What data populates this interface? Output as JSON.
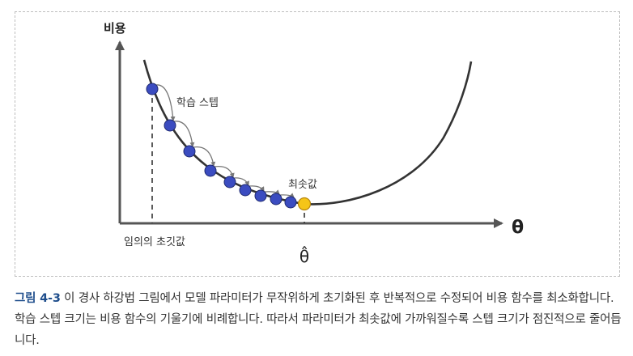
{
  "diagram": {
    "y_axis_label": "비용",
    "x_axis_label": "θ",
    "step_label": "학습 스텝",
    "minimum_label": "최솟값",
    "initial_label": "임의의 초깃값",
    "theta_hat_label": "θ̂",
    "colors": {
      "axis": "#555555",
      "curve": "#333333",
      "step_point": "#3b4cc0",
      "minimum_point": "#f5c518",
      "arrow": "#777777"
    }
  },
  "caption": {
    "figure_number": "그림 4-3",
    "text": " 이 경사 하강법 그림에서 모델 파라미터가 무작위하게 초기화된 후 반복적으로 수정되어 비용 함수를 최소화합니다. 학습 스텝 크기는 비용 함수의 기울기에 비례합니다. 따라서 파라미터가 최솟값에 가까워질수록 스텝 크기가 점진적으로 줄어듭니다."
  }
}
